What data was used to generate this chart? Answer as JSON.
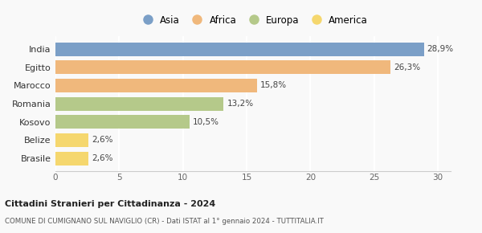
{
  "categories": [
    "Brasile",
    "Belize",
    "Kosovo",
    "Romania",
    "Marocco",
    "Egitto",
    "India"
  ],
  "values": [
    2.6,
    2.6,
    10.5,
    13.2,
    15.8,
    26.3,
    28.9
  ],
  "labels": [
    "2,6%",
    "2,6%",
    "10,5%",
    "13,2%",
    "15,8%",
    "26,3%",
    "28,9%"
  ],
  "colors": [
    "#f5d76e",
    "#f5d76e",
    "#b5c98a",
    "#b5c98a",
    "#f0b87c",
    "#f0b87c",
    "#7b9fc7"
  ],
  "legend": [
    {
      "label": "Asia",
      "color": "#7b9fc7"
    },
    {
      "label": "Africa",
      "color": "#f0b87c"
    },
    {
      "label": "Europa",
      "color": "#b5c98a"
    },
    {
      "label": "America",
      "color": "#f5d76e"
    }
  ],
  "xlim": [
    0,
    31
  ],
  "xticks": [
    0,
    5,
    10,
    15,
    20,
    25,
    30
  ],
  "title_bold": "Cittadini Stranieri per Cittadinanza - 2024",
  "subtitle": "COMUNE DI CUMIGNANO SUL NAVIGLIO (CR) - Dati ISTAT al 1° gennaio 2024 - TUTTITALIA.IT",
  "background_color": "#f9f9f9",
  "bar_height": 0.75
}
